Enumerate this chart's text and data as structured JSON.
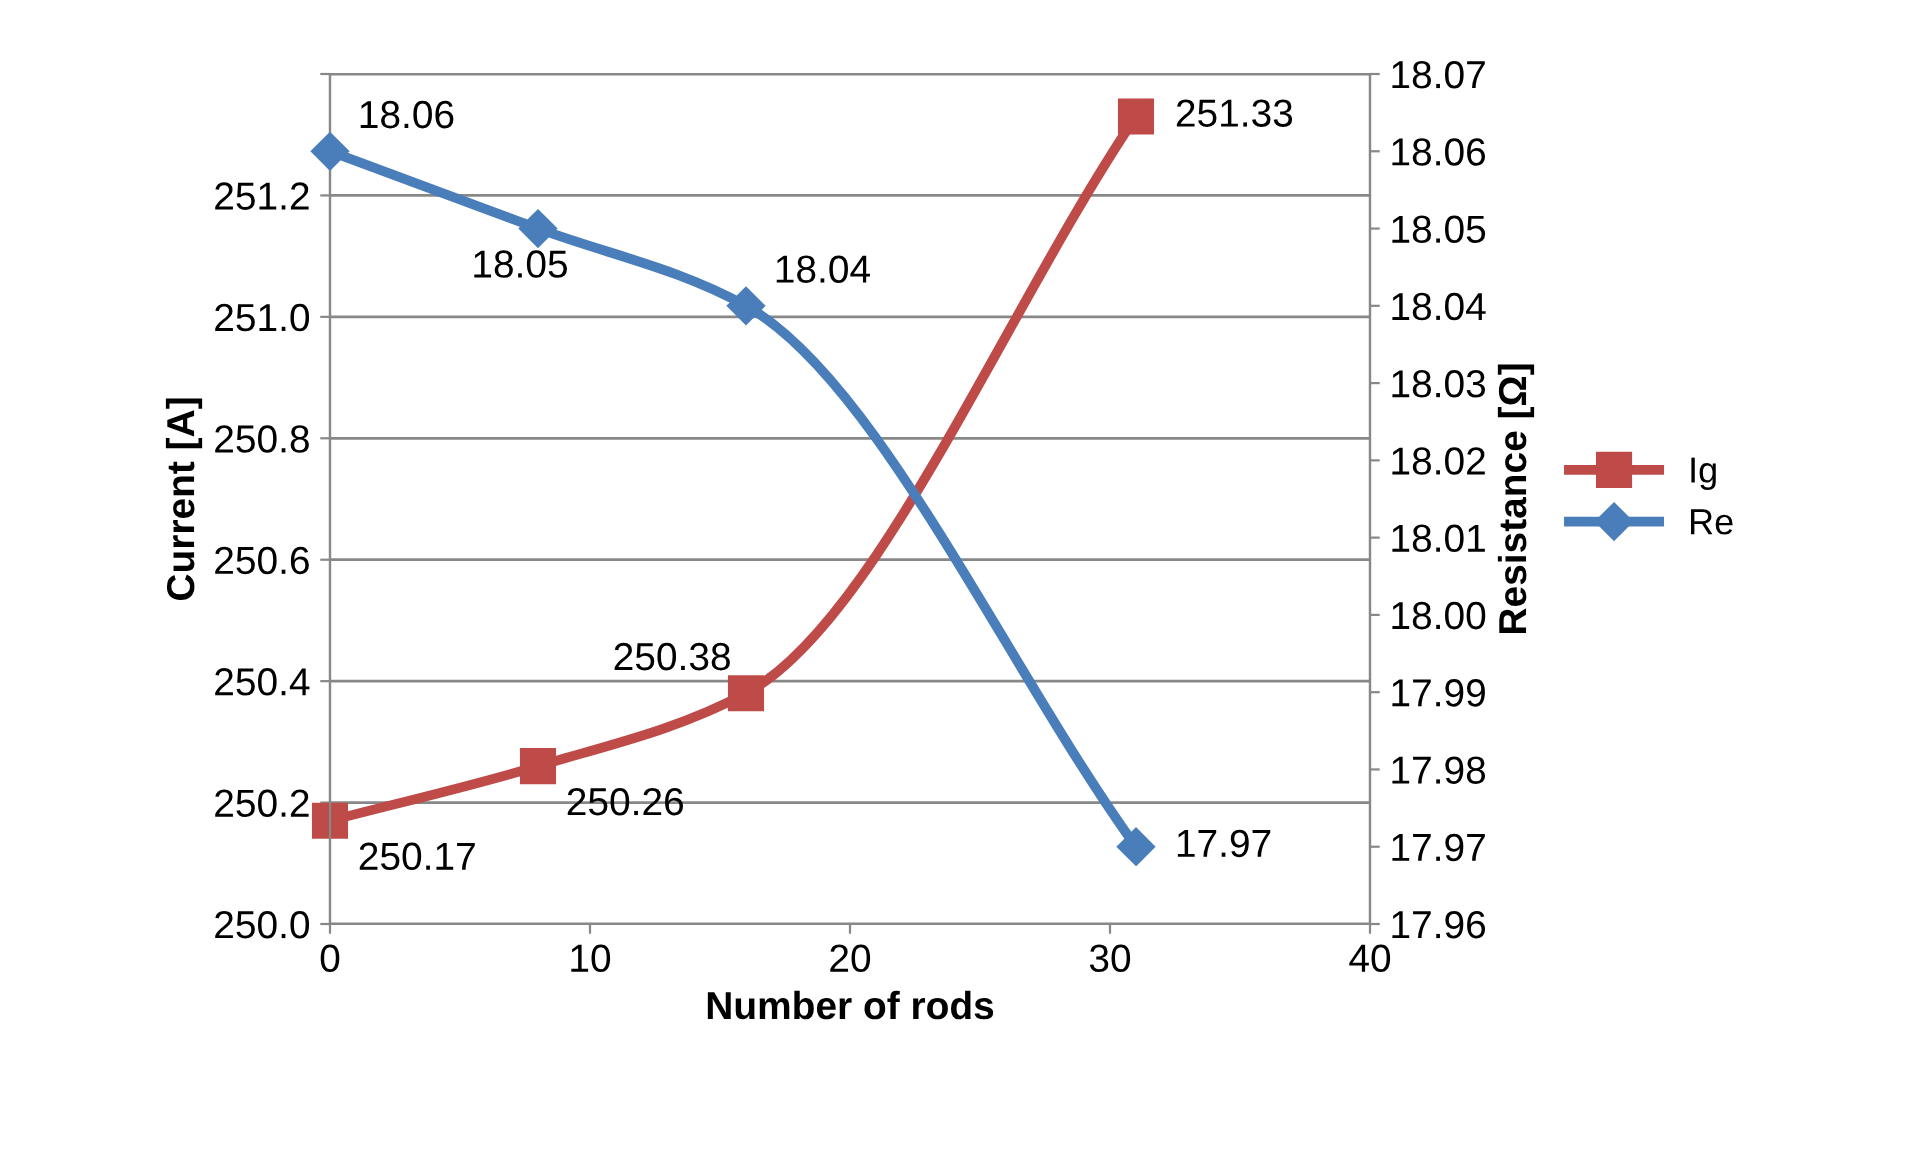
{
  "chart_data": {
    "type": "line",
    "xlabel": "Number of rods",
    "ylabel": "Current [A]",
    "y2label": "Resistance [Ω]",
    "x": [
      0,
      8,
      16,
      31
    ],
    "series": [
      {
        "name": "Ig",
        "color": "#be4b48",
        "marker": "square",
        "values": [
          250.17,
          250.26,
          250.38,
          251.33
        ]
      },
      {
        "name": "Re",
        "color": "#4a7ebb",
        "marker": "diamond",
        "axis": "y2",
        "values": [
          18.06,
          18.05,
          18.04,
          17.97
        ]
      }
    ],
    "xlim": [
      0,
      40
    ],
    "xticks": [
      0,
      10,
      20,
      30,
      40
    ],
    "ylim": [
      250.0,
      251.4
    ],
    "yticks": [
      {
        "value": 250.0,
        "label": "250.0"
      },
      {
        "value": 250.2,
        "label": "250.2"
      },
      {
        "value": 250.4,
        "label": "250.4"
      },
      {
        "value": 250.6,
        "label": "250.6"
      },
      {
        "value": 250.8,
        "label": "250.8"
      },
      {
        "value": 251.0,
        "label": "251.0"
      },
      {
        "value": 251.2,
        "label": "251.2"
      },
      {
        "value": 251.4,
        "label": null
      }
    ],
    "y2lim": [
      17.96,
      18.07
    ],
    "y2ticks": [
      {
        "value": 17.96,
        "label": "17.96"
      },
      {
        "value": 17.97,
        "label": "17.97"
      },
      {
        "value": 17.98,
        "label": "17.98"
      },
      {
        "value": 17.99,
        "label": "17.99"
      },
      {
        "value": 18.0,
        "label": "18.00"
      },
      {
        "value": 18.01,
        "label": "18.01"
      },
      {
        "value": 18.02,
        "label": "18.02"
      },
      {
        "value": 18.03,
        "label": "18.03"
      },
      {
        "value": 18.04,
        "label": "18.04"
      },
      {
        "value": 18.05,
        "label": "18.05"
      },
      {
        "value": 18.06,
        "label": "18.06"
      },
      {
        "value": 18.07,
        "label": "18.07"
      }
    ],
    "grid": "y",
    "legend": "right",
    "data_labels": true,
    "line_style": "solid"
  }
}
